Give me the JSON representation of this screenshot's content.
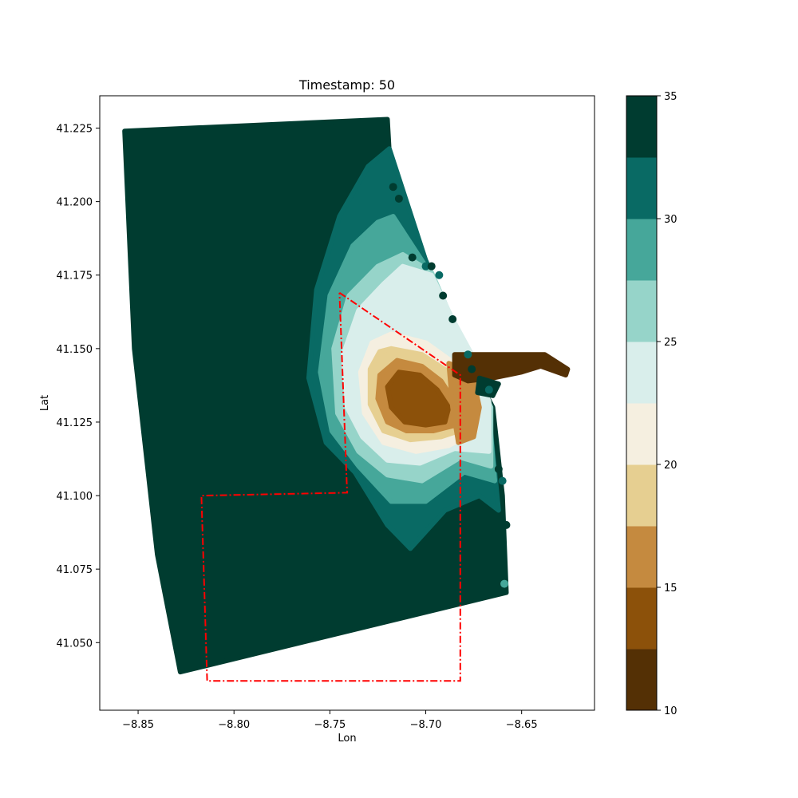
{
  "chart_data": {
    "type": "scatter",
    "title": "Timestamp: 50",
    "xlabel": "Lon",
    "ylabel": "Lat",
    "xlim": [
      -8.87,
      -8.612
    ],
    "ylim": [
      41.027,
      41.236
    ],
    "x_ticks": [
      -8.85,
      -8.8,
      -8.75,
      -8.7,
      -8.65
    ],
    "x_tick_labels": [
      "−8.85",
      "−8.80",
      "−8.75",
      "−8.70",
      "−8.65"
    ],
    "y_ticks": [
      41.05,
      41.075,
      41.1,
      41.125,
      41.15,
      41.175,
      41.2,
      41.225
    ],
    "y_tick_labels": [
      "41.050",
      "41.075",
      "41.100",
      "41.125",
      "41.150",
      "41.175",
      "41.200",
      "41.225"
    ],
    "grid": false,
    "colorbar": {
      "min": 10,
      "max": 35,
      "ticks": [
        10,
        15,
        20,
        25,
        30,
        35
      ],
      "tick_labels": [
        "10",
        "15",
        "20",
        "25",
        "30",
        "35"
      ],
      "levels": [
        {
          "from": 10.0,
          "to": 12.5,
          "color": "#543005"
        },
        {
          "from": 12.5,
          "to": 15.0,
          "color": "#8c510a"
        },
        {
          "from": 15.0,
          "to": 17.5,
          "color": "#c58a3f"
        },
        {
          "from": 17.5,
          "to": 20.0,
          "color": "#e6cf91"
        },
        {
          "from": 20.0,
          "to": 22.5,
          "color": "#f5efe0"
        },
        {
          "from": 22.5,
          "to": 25.0,
          "color": "#d9eeeb"
        },
        {
          "from": 25.0,
          "to": 27.5,
          "color": "#96d4c9"
        },
        {
          "from": 27.5,
          "to": 30.0,
          "color": "#46a79a"
        },
        {
          "from": 30.0,
          "to": 32.5,
          "color": "#096a64"
        },
        {
          "from": 32.5,
          "to": 35.0,
          "color": "#003c30"
        }
      ]
    },
    "regions": [
      {
        "level": 32.5,
        "points": [
          [
            -8.857,
            41.224
          ],
          [
            -8.72,
            41.228
          ],
          [
            -8.718,
            41.205
          ],
          [
            -8.7,
            41.18
          ],
          [
            -8.69,
            41.165
          ],
          [
            -8.685,
            41.155
          ],
          [
            -8.665,
            41.13
          ],
          [
            -8.66,
            41.1
          ],
          [
            -8.658,
            41.067
          ],
          [
            -8.828,
            41.04
          ],
          [
            -8.84,
            41.08
          ],
          [
            -8.852,
            41.15
          ]
        ]
      },
      {
        "level": 30.0,
        "points": [
          [
            -8.719,
            41.218
          ],
          [
            -8.7,
            41.18
          ],
          [
            -8.685,
            41.155
          ],
          [
            -8.667,
            41.128
          ],
          [
            -8.662,
            41.095
          ],
          [
            -8.672,
            41.1
          ],
          [
            -8.69,
            41.095
          ],
          [
            -8.708,
            41.082
          ],
          [
            -8.72,
            41.09
          ],
          [
            -8.737,
            41.108
          ],
          [
            -8.752,
            41.118
          ],
          [
            -8.761,
            41.14
          ],
          [
            -8.757,
            41.17
          ],
          [
            -8.745,
            41.195
          ],
          [
            -8.73,
            41.212
          ]
        ]
      },
      {
        "level": 27.5,
        "points": [
          [
            -8.717,
            41.195
          ],
          [
            -8.7,
            41.178
          ],
          [
            -8.685,
            41.155
          ],
          [
            -8.667,
            41.128
          ],
          [
            -8.664,
            41.105
          ],
          [
            -8.68,
            41.108
          ],
          [
            -8.7,
            41.098
          ],
          [
            -8.718,
            41.098
          ],
          [
            -8.735,
            41.11
          ],
          [
            -8.749,
            41.122
          ],
          [
            -8.755,
            41.142
          ],
          [
            -8.75,
            41.168
          ],
          [
            -8.738,
            41.185
          ],
          [
            -8.725,
            41.193
          ]
        ]
      },
      {
        "level": 25.0,
        "points": [
          [
            -8.712,
            41.182
          ],
          [
            -8.697,
            41.176
          ],
          [
            -8.683,
            41.155
          ],
          [
            -8.666,
            41.13
          ],
          [
            -8.666,
            41.11
          ],
          [
            -8.682,
            41.113
          ],
          [
            -8.702,
            41.105
          ],
          [
            -8.72,
            41.107
          ],
          [
            -8.735,
            41.115
          ],
          [
            -8.746,
            41.128
          ],
          [
            -8.748,
            41.15
          ],
          [
            -8.74,
            41.168
          ],
          [
            -8.725,
            41.178
          ]
        ]
      },
      {
        "level": 22.5,
        "points": [
          [
            -8.712,
            41.178
          ],
          [
            -8.697,
            41.175
          ],
          [
            -8.686,
            41.16
          ],
          [
            -8.676,
            41.148
          ],
          [
            -8.667,
            41.132
          ],
          [
            -8.667,
            41.115
          ],
          [
            -8.685,
            41.116
          ],
          [
            -8.703,
            41.111
          ],
          [
            -8.72,
            41.112
          ],
          [
            -8.733,
            41.12
          ],
          [
            -8.741,
            41.13
          ],
          [
            -8.743,
            41.148
          ],
          [
            -8.735,
            41.163
          ],
          [
            -8.722,
            41.172
          ]
        ]
      },
      {
        "level": 20.0,
        "points": [
          [
            -8.718,
            41.155
          ],
          [
            -8.7,
            41.152
          ],
          [
            -8.685,
            41.145
          ],
          [
            -8.676,
            41.135
          ],
          [
            -8.674,
            41.122
          ],
          [
            -8.688,
            41.117
          ],
          [
            -8.705,
            41.115
          ],
          [
            -8.722,
            41.118
          ],
          [
            -8.732,
            41.128
          ],
          [
            -8.734,
            41.142
          ],
          [
            -8.728,
            41.152
          ]
        ]
      },
      {
        "level": 17.5,
        "points": [
          [
            -8.718,
            41.15
          ],
          [
            -8.702,
            41.148
          ],
          [
            -8.688,
            41.142
          ],
          [
            -8.679,
            41.133
          ],
          [
            -8.678,
            41.123
          ],
          [
            -8.692,
            41.12
          ],
          [
            -8.708,
            41.119
          ],
          [
            -8.722,
            41.122
          ],
          [
            -8.729,
            41.131
          ],
          [
            -8.729,
            41.143
          ],
          [
            -8.724,
            41.149
          ]
        ]
      },
      {
        "level": 15.0,
        "points": [
          [
            -8.715,
            41.146
          ],
          [
            -8.702,
            41.144
          ],
          [
            -8.692,
            41.139
          ],
          [
            -8.685,
            41.132
          ],
          [
            -8.684,
            41.124
          ],
          [
            -8.696,
            41.122
          ],
          [
            -8.71,
            41.122
          ],
          [
            -8.72,
            41.125
          ],
          [
            -8.725,
            41.133
          ],
          [
            -8.724,
            41.141
          ]
        ]
      },
      {
        "level": 12.5,
        "points": [
          [
            -8.714,
            41.142
          ],
          [
            -8.703,
            41.141
          ],
          [
            -8.694,
            41.136
          ],
          [
            -8.688,
            41.13
          ],
          [
            -8.69,
            41.125
          ],
          [
            -8.7,
            41.124
          ],
          [
            -8.711,
            41.125
          ],
          [
            -8.718,
            41.13
          ],
          [
            -8.72,
            41.137
          ]
        ]
      },
      {
        "level": 15.0,
        "points": [
          [
            -8.688,
            41.145
          ],
          [
            -8.676,
            41.142
          ],
          [
            -8.672,
            41.13
          ],
          [
            -8.675,
            41.12
          ],
          [
            -8.683,
            41.118
          ],
          [
            -8.686,
            41.13
          ]
        ]
      },
      {
        "level": 10.0,
        "points": [
          [
            -8.685,
            41.148
          ],
          [
            -8.67,
            41.148
          ],
          [
            -8.65,
            41.148
          ],
          [
            -8.638,
            41.148
          ],
          [
            -8.626,
            41.143
          ],
          [
            -8.627,
            41.141
          ],
          [
            -8.64,
            41.144
          ],
          [
            -8.65,
            41.142
          ],
          [
            -8.665,
            41.14
          ],
          [
            -8.678,
            41.139
          ],
          [
            -8.685,
            41.141
          ]
        ]
      },
      {
        "level": 32.5,
        "points": [
          [
            -8.672,
            41.14
          ],
          [
            -8.662,
            41.138
          ],
          [
            -8.665,
            41.134
          ],
          [
            -8.673,
            41.135
          ]
        ]
      }
    ],
    "coast_points": [
      {
        "x": -8.717,
        "y": 41.205,
        "level": 32.5
      },
      {
        "x": -8.714,
        "y": 41.201,
        "level": 32.5
      },
      {
        "x": -8.707,
        "y": 41.181,
        "level": 32.5
      },
      {
        "x": -8.7,
        "y": 41.178,
        "level": 30.0
      },
      {
        "x": -8.697,
        "y": 41.178,
        "level": 32.5
      },
      {
        "x": -8.693,
        "y": 41.175,
        "level": 30.0
      },
      {
        "x": -8.691,
        "y": 41.168,
        "level": 32.5
      },
      {
        "x": -8.686,
        "y": 41.16,
        "level": 32.5
      },
      {
        "x": -8.678,
        "y": 41.148,
        "level": 30.0
      },
      {
        "x": -8.676,
        "y": 41.143,
        "level": 32.5
      },
      {
        "x": -8.667,
        "y": 41.136,
        "level": 30.0
      },
      {
        "x": -8.662,
        "y": 41.109,
        "level": 32.5
      },
      {
        "x": -8.66,
        "y": 41.105,
        "level": 30.0
      },
      {
        "x": -8.658,
        "y": 41.09,
        "level": 32.5
      },
      {
        "x": -8.659,
        "y": 41.07,
        "level": 27.5
      }
    ],
    "outline": {
      "color": "#ff0000",
      "style": "dash-dot",
      "points": [
        [
          -8.745,
          41.169
        ],
        [
          -8.682,
          41.141
        ],
        [
          -8.682,
          41.037
        ],
        [
          -8.814,
          41.037
        ],
        [
          -8.817,
          41.1
        ],
        [
          -8.741,
          41.101
        ],
        [
          -8.745,
          41.169
        ]
      ]
    }
  }
}
